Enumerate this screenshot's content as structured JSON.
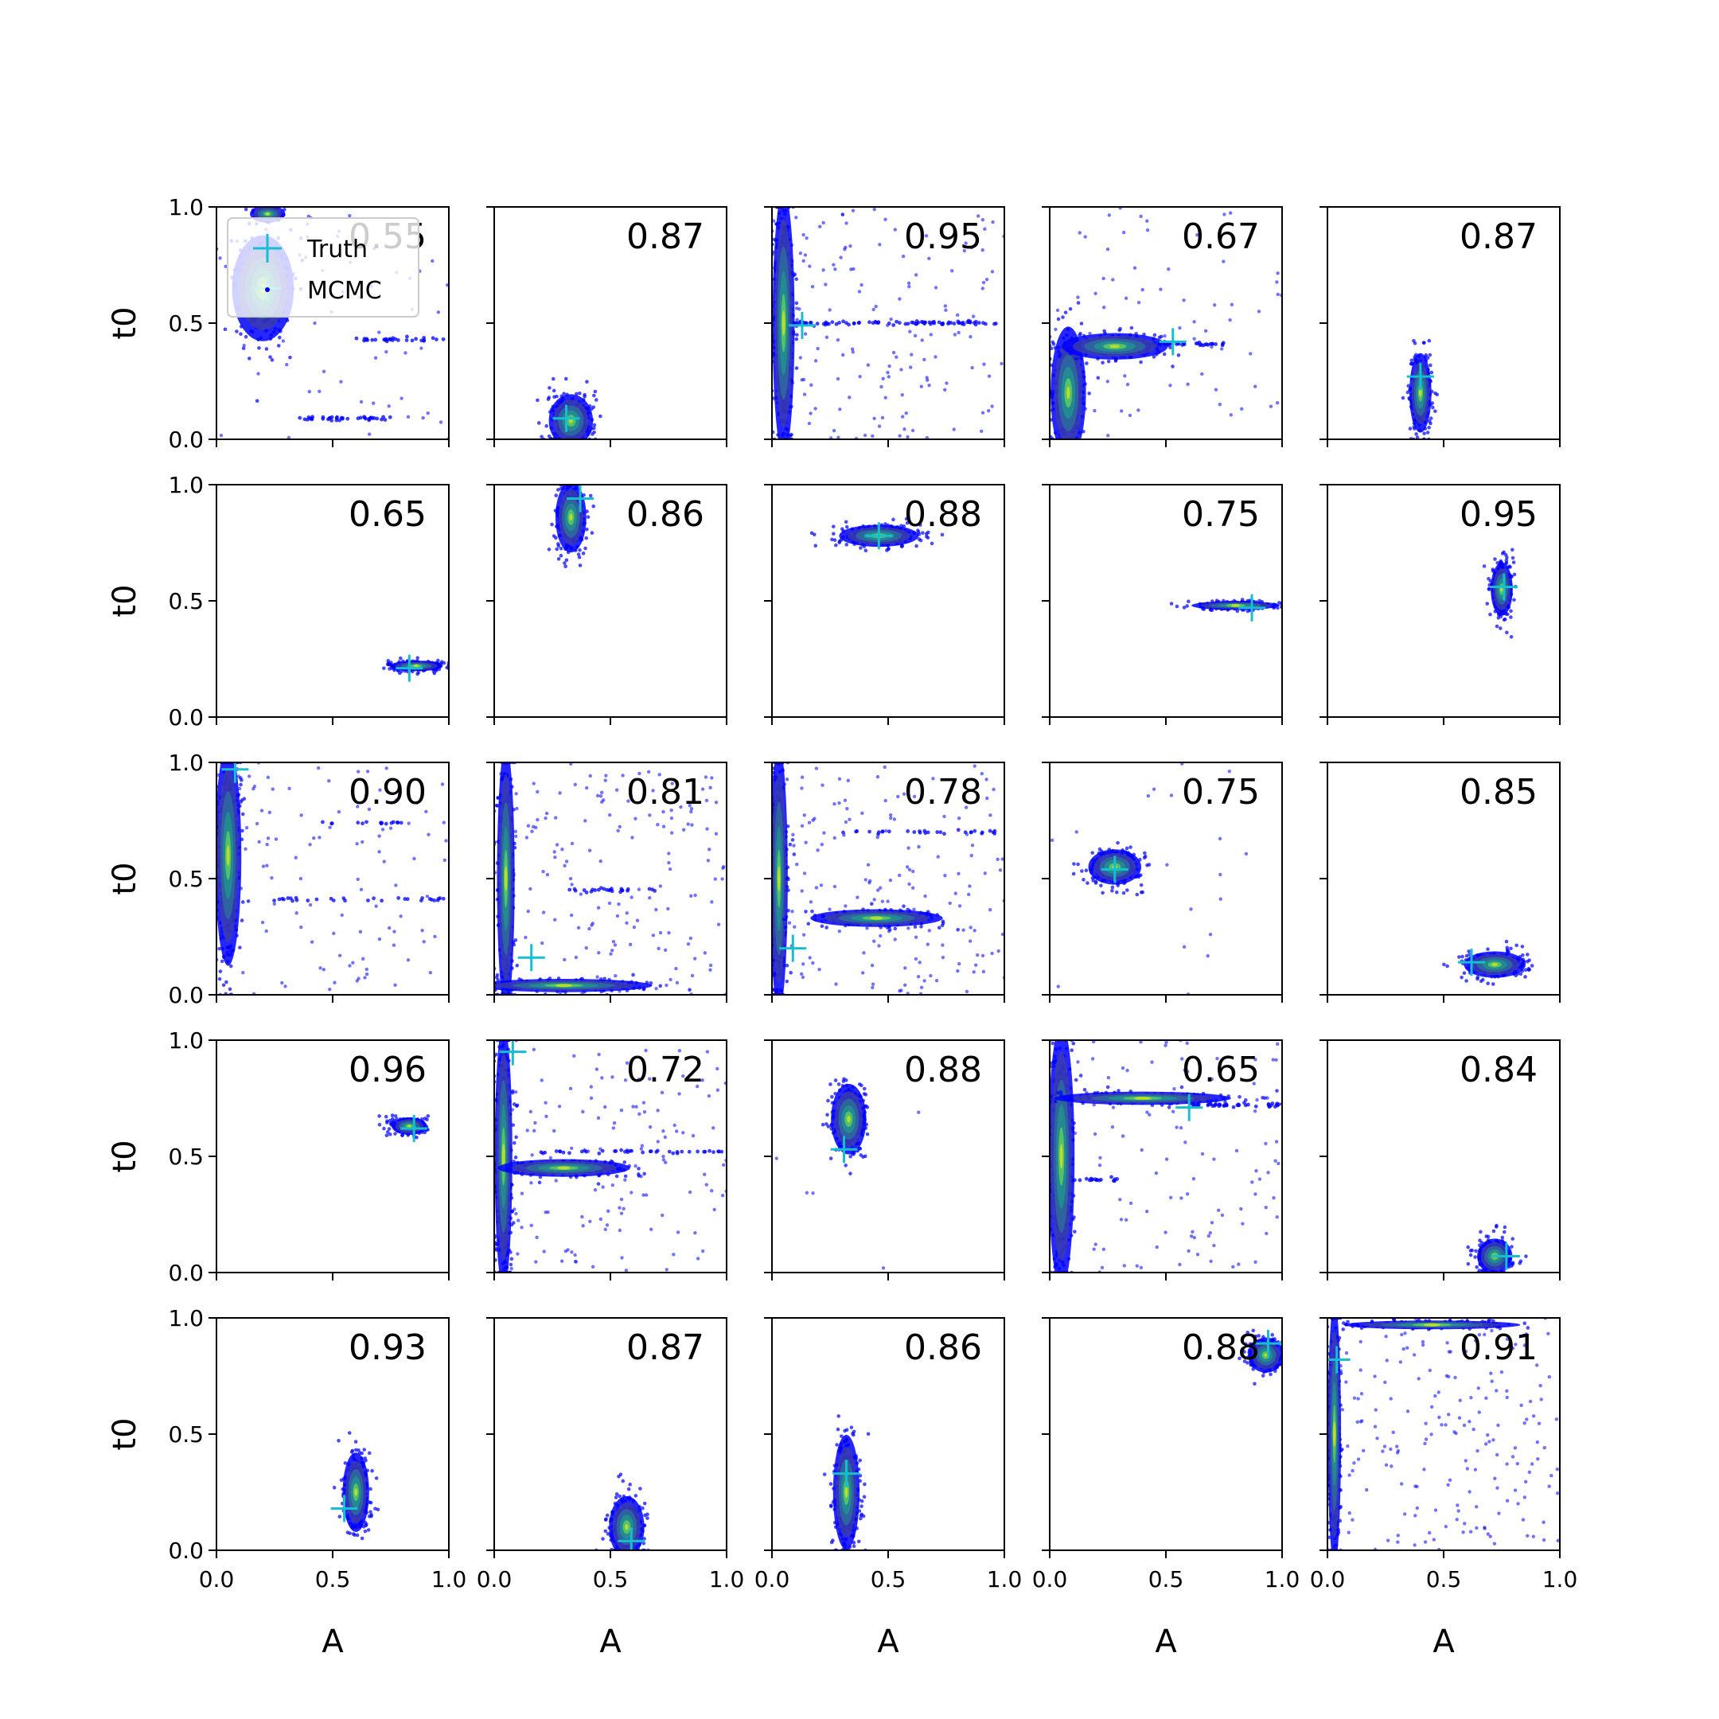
{
  "chart_data": {
    "type": "scatter",
    "rows": 5,
    "cols": 5,
    "xlabel": "A",
    "ylabel": "t0",
    "xlim": [
      0.0,
      1.0
    ],
    "ylim": [
      0.0,
      1.0
    ],
    "xticks": [
      0.0,
      0.5,
      1.0
    ],
    "yticks": [
      0.0,
      0.5,
      1.0
    ],
    "xtick_labels": [
      "0.0",
      "0.5",
      "1.0"
    ],
    "ytick_labels": [
      "0.0",
      "0.5",
      "1.0"
    ],
    "legend": {
      "placement": "upper-left of first panel",
      "entries": [
        {
          "label": "Truth",
          "marker": "plus",
          "color": "#17becf"
        },
        {
          "label": "MCMC",
          "marker": "dot",
          "color": "#0000ff"
        }
      ]
    },
    "colors": {
      "mcmc": "#0000ff",
      "truth": "#17becf",
      "density_low": "#3b3fa8",
      "density_mid": "#21908d",
      "density_high": "#bddf26"
    },
    "panels": [
      {
        "score": "0.55",
        "truth": [
          0.22,
          0.65
        ],
        "clusters": [
          {
            "cx": 0.2,
            "cy": 0.65,
            "sx": 0.07,
            "sy": 0.12,
            "n": 220
          },
          {
            "cx": 0.22,
            "cy": 0.97,
            "sx": 0.04,
            "sy": 0.02,
            "n": 40
          }
        ],
        "lines": [
          {
            "y": 0.43,
            "x0": 0.6,
            "x1": 0.98,
            "n": 30
          },
          {
            "y": 0.09,
            "x0": 0.33,
            "x1": 0.78,
            "n": 40
          }
        ],
        "scatter": 60
      },
      {
        "score": "0.87",
        "truth": [
          0.31,
          0.09
        ],
        "clusters": [
          {
            "cx": 0.33,
            "cy": 0.08,
            "sx": 0.05,
            "sy": 0.06,
            "n": 260
          }
        ],
        "lines": [],
        "scatter": 0
      },
      {
        "score": "0.95",
        "truth": [
          0.13,
          0.49
        ],
        "clusters": [
          {
            "cx": 0.05,
            "cy": 0.5,
            "sx": 0.025,
            "sy": 0.3,
            "n": 320
          }
        ],
        "lines": [
          {
            "y": 0.5,
            "x0": 0.05,
            "x1": 0.98,
            "n": 90
          }
        ],
        "scatter": 160
      },
      {
        "score": "0.67",
        "truth": [
          0.53,
          0.42
        ],
        "clusters": [
          {
            "cx": 0.08,
            "cy": 0.2,
            "sx": 0.04,
            "sy": 0.15,
            "n": 200
          },
          {
            "cx": 0.28,
            "cy": 0.4,
            "sx": 0.12,
            "sy": 0.03,
            "n": 180
          }
        ],
        "lines": [
          {
            "y": 0.41,
            "x0": 0.2,
            "x1": 0.75,
            "n": 60
          }
        ],
        "scatter": 70
      },
      {
        "score": "0.87",
        "truth": [
          0.4,
          0.27
        ],
        "clusters": [
          {
            "cx": 0.4,
            "cy": 0.2,
            "sx": 0.025,
            "sy": 0.09,
            "n": 240
          }
        ],
        "lines": [],
        "scatter": 0
      },
      {
        "score": "0.65",
        "truth": [
          0.83,
          0.21
        ],
        "clusters": [
          {
            "cx": 0.86,
            "cy": 0.22,
            "sx": 0.06,
            "sy": 0.012,
            "n": 220
          }
        ],
        "lines": [],
        "scatter": 0
      },
      {
        "score": "0.86",
        "truth": [
          0.37,
          0.94
        ],
        "clusters": [
          {
            "cx": 0.33,
            "cy": 0.86,
            "sx": 0.035,
            "sy": 0.08,
            "n": 260
          }
        ],
        "lines": [],
        "scatter": 0
      },
      {
        "score": "0.88",
        "truth": [
          0.46,
          0.78
        ],
        "clusters": [
          {
            "cx": 0.46,
            "cy": 0.78,
            "sx": 0.09,
            "sy": 0.025,
            "n": 240
          }
        ],
        "lines": [],
        "scatter": 0
      },
      {
        "score": "0.75",
        "truth": [
          0.87,
          0.47
        ],
        "clusters": [
          {
            "cx": 0.8,
            "cy": 0.48,
            "sx": 0.1,
            "sy": 0.01,
            "n": 220
          }
        ],
        "lines": [],
        "scatter": 0
      },
      {
        "score": "0.95",
        "truth": [
          0.76,
          0.56
        ],
        "clusters": [
          {
            "cx": 0.75,
            "cy": 0.55,
            "sx": 0.025,
            "sy": 0.06,
            "n": 240
          }
        ],
        "lines": [],
        "scatter": 0
      },
      {
        "score": "0.90",
        "truth": [
          0.08,
          0.97
        ],
        "clusters": [
          {
            "cx": 0.05,
            "cy": 0.6,
            "sx": 0.03,
            "sy": 0.25,
            "n": 260
          }
        ],
        "lines": [
          {
            "y": 0.41,
            "x0": 0.2,
            "x1": 0.98,
            "n": 30
          },
          {
            "y": 0.74,
            "x0": 0.45,
            "x1": 0.8,
            "n": 15
          }
        ],
        "scatter": 110
      },
      {
        "score": "0.81",
        "truth": [
          0.16,
          0.16
        ],
        "clusters": [
          {
            "cx": 0.05,
            "cy": 0.5,
            "sx": 0.02,
            "sy": 0.3,
            "n": 250
          },
          {
            "cx": 0.3,
            "cy": 0.04,
            "sx": 0.2,
            "sy": 0.015,
            "n": 120
          }
        ],
        "lines": [
          {
            "y": 0.45,
            "x0": 0.3,
            "x1": 0.7,
            "n": 25
          }
        ],
        "scatter": 170
      },
      {
        "score": "0.78",
        "truth": [
          0.09,
          0.2
        ],
        "clusters": [
          {
            "cx": 0.03,
            "cy": 0.5,
            "sx": 0.02,
            "sy": 0.3,
            "n": 250
          },
          {
            "cx": 0.45,
            "cy": 0.33,
            "sx": 0.15,
            "sy": 0.02,
            "n": 160
          }
        ],
        "lines": [
          {
            "y": 0.7,
            "x0": 0.3,
            "x1": 0.98,
            "n": 30
          }
        ],
        "scatter": 170
      },
      {
        "score": "0.75",
        "truth": [
          0.28,
          0.54
        ],
        "clusters": [
          {
            "cx": 0.28,
            "cy": 0.55,
            "sx": 0.06,
            "sy": 0.04,
            "n": 240
          }
        ],
        "lines": [],
        "scatter": 20
      },
      {
        "score": "0.85",
        "truth": [
          0.62,
          0.14
        ],
        "clusters": [
          {
            "cx": 0.72,
            "cy": 0.13,
            "sx": 0.07,
            "sy": 0.03,
            "n": 240
          }
        ],
        "lines": [],
        "scatter": 0
      },
      {
        "score": "0.96",
        "truth": [
          0.85,
          0.62
        ],
        "clusters": [
          {
            "cx": 0.83,
            "cy": 0.63,
            "sx": 0.04,
            "sy": 0.02,
            "n": 220
          }
        ],
        "lines": [],
        "scatter": 0
      },
      {
        "score": "0.72",
        "truth": [
          0.08,
          0.95
        ],
        "clusters": [
          {
            "cx": 0.04,
            "cy": 0.5,
            "sx": 0.02,
            "sy": 0.3,
            "n": 280
          },
          {
            "cx": 0.3,
            "cy": 0.45,
            "sx": 0.15,
            "sy": 0.02,
            "n": 150
          }
        ],
        "lines": [
          {
            "y": 0.52,
            "x0": 0.2,
            "x1": 0.98,
            "n": 40
          }
        ],
        "scatter": 140
      },
      {
        "score": "0.88",
        "truth": [
          0.31,
          0.53
        ],
        "clusters": [
          {
            "cx": 0.33,
            "cy": 0.66,
            "sx": 0.04,
            "sy": 0.08,
            "n": 260
          }
        ],
        "lines": [],
        "scatter": 5
      },
      {
        "score": "0.65",
        "truth": [
          0.6,
          0.71
        ],
        "clusters": [
          {
            "cx": 0.05,
            "cy": 0.5,
            "sx": 0.03,
            "sy": 0.3,
            "n": 240
          },
          {
            "cx": 0.4,
            "cy": 0.75,
            "sx": 0.2,
            "sy": 0.015,
            "n": 160
          }
        ],
        "lines": [
          {
            "y": 0.72,
            "x0": 0.6,
            "x1": 0.99,
            "n": 40
          },
          {
            "y": 0.4,
            "x0": 0.05,
            "x1": 0.3,
            "n": 20
          }
        ],
        "scatter": 110
      },
      {
        "score": "0.84",
        "truth": [
          0.77,
          0.07
        ],
        "clusters": [
          {
            "cx": 0.72,
            "cy": 0.07,
            "sx": 0.04,
            "sy": 0.04,
            "n": 240
          }
        ],
        "lines": [],
        "scatter": 0
      },
      {
        "score": "0.93",
        "truth": [
          0.55,
          0.18
        ],
        "clusters": [
          {
            "cx": 0.6,
            "cy": 0.25,
            "sx": 0.03,
            "sy": 0.09,
            "n": 250
          }
        ],
        "lines": [],
        "scatter": 0
      },
      {
        "score": "0.87",
        "truth": [
          0.59,
          0.04
        ],
        "clusters": [
          {
            "cx": 0.57,
            "cy": 0.1,
            "sx": 0.04,
            "sy": 0.07,
            "n": 250
          }
        ],
        "lines": [],
        "scatter": 0
      },
      {
        "score": "0.86",
        "truth": [
          0.32,
          0.33
        ],
        "clusters": [
          {
            "cx": 0.32,
            "cy": 0.25,
            "sx": 0.03,
            "sy": 0.13,
            "n": 270
          }
        ],
        "lines": [],
        "scatter": 0
      },
      {
        "score": "0.88",
        "truth": [
          0.94,
          0.89
        ],
        "clusters": [
          {
            "cx": 0.93,
            "cy": 0.84,
            "sx": 0.04,
            "sy": 0.04,
            "n": 240
          }
        ],
        "lines": [],
        "scatter": 0
      },
      {
        "score": "0.91",
        "truth": [
          0.04,
          0.82
        ],
        "clusters": [
          {
            "cx": 0.03,
            "cy": 0.5,
            "sx": 0.015,
            "sy": 0.3,
            "n": 240
          },
          {
            "cx": 0.45,
            "cy": 0.97,
            "sx": 0.2,
            "sy": 0.01,
            "n": 120
          }
        ],
        "lines": [],
        "scatter": 200
      }
    ]
  }
}
